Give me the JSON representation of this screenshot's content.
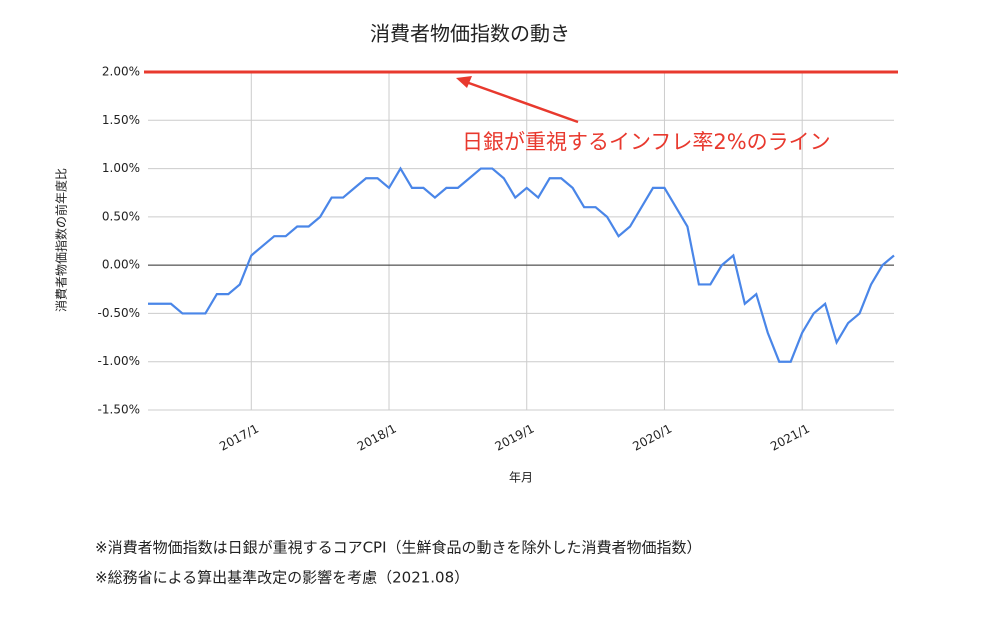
{
  "chart_data": {
    "type": "line",
    "title": "消費者物価指数の動き",
    "y_label": "消費者物価指数の前年度比",
    "x_label": "年月",
    "categories": [
      null,
      null,
      null,
      null,
      null,
      null,
      null,
      null,
      null,
      "2017/1",
      null,
      null,
      null,
      null,
      null,
      null,
      null,
      null,
      null,
      null,
      null,
      "2018/1",
      null,
      null,
      null,
      null,
      null,
      null,
      null,
      null,
      null,
      null,
      null,
      "2019/1",
      null,
      null,
      null,
      null,
      null,
      null,
      null,
      null,
      null,
      null,
      null,
      "2020/1",
      null,
      null,
      null,
      null,
      null,
      null,
      null,
      null,
      null,
      null,
      null,
      "2021/1",
      null,
      null,
      null,
      null,
      null,
      null,
      null,
      null
    ],
    "series": [
      {
        "color": "#4a86e8",
        "values": [
          -0.4,
          -0.4,
          -0.4,
          -0.5,
          -0.5,
          -0.5,
          -0.3,
          -0.3,
          -0.2,
          0.1,
          0.2,
          0.3,
          0.3,
          0.4,
          0.4,
          0.5,
          0.7,
          0.7,
          0.8,
          0.9,
          0.9,
          0.8,
          1.0,
          0.8,
          0.8,
          0.7,
          0.8,
          0.8,
          0.9,
          1.0,
          1.0,
          0.9,
          0.7,
          0.8,
          0.7,
          0.9,
          0.9,
          0.8,
          0.6,
          0.6,
          0.5,
          0.3,
          0.4,
          0.6,
          0.8,
          0.8,
          0.6,
          0.4,
          -0.2,
          -0.2,
          0.0,
          0.1,
          -0.4,
          -0.3,
          -0.7,
          -1.0,
          -1.0,
          -0.7,
          -0.5,
          -0.4,
          -0.8,
          -0.6,
          -0.5,
          -0.2,
          0.0,
          0.1
        ]
      }
    ],
    "ylim": [
      -1.5,
      2.0
    ],
    "yticks": [
      {
        "value": -1.5,
        "label": "-1.50%"
      },
      {
        "value": -1.0,
        "label": "-1.00%"
      },
      {
        "value": -0.5,
        "label": "-0.50%"
      },
      {
        "value": 0,
        "label": "0.00%"
      },
      {
        "value": 0.5,
        "label": "0.50%"
      },
      {
        "value": 1.0,
        "label": "1.00%"
      },
      {
        "value": 1.5,
        "label": "1.50%"
      },
      {
        "value": 2.0,
        "label": "2.00%"
      }
    ],
    "grid": true,
    "reference_line": {
      "value": 2.0,
      "color": "#e8392e"
    },
    "annotation": "日銀が重視するインフレ率2%のライン",
    "footnotes": [
      "※消費者物価指数は日銀が重視するコアCPI（生鮮食品の動きを除外した消費者物価指数）",
      "※総務省による算出基準改定の影響を考慮（2021.08）"
    ]
  }
}
